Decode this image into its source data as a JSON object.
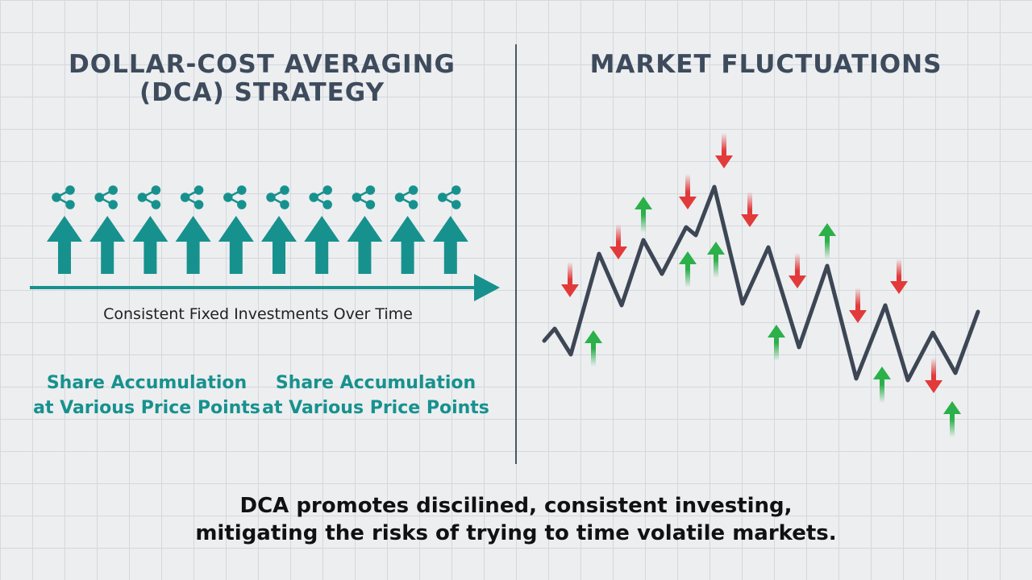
{
  "left_panel": {
    "title_lines": [
      "DOLLAR-COST AVERAGING",
      "(DCA) STRATEGY"
    ],
    "caption": "Consistent Fixed Investments Over Time",
    "labels": [
      [
        "Share Accumulation",
        "at Various Price Points"
      ],
      [
        "Share Accumulation",
        "at Various Price Points"
      ]
    ]
  },
  "right_panel": {
    "title": "MARKET FLUCTUATIONS"
  },
  "footer": {
    "lines": [
      "DCA promotes discilined, consistent investing,",
      "mitigating the risks of trying to time volatile markets."
    ]
  }
}
